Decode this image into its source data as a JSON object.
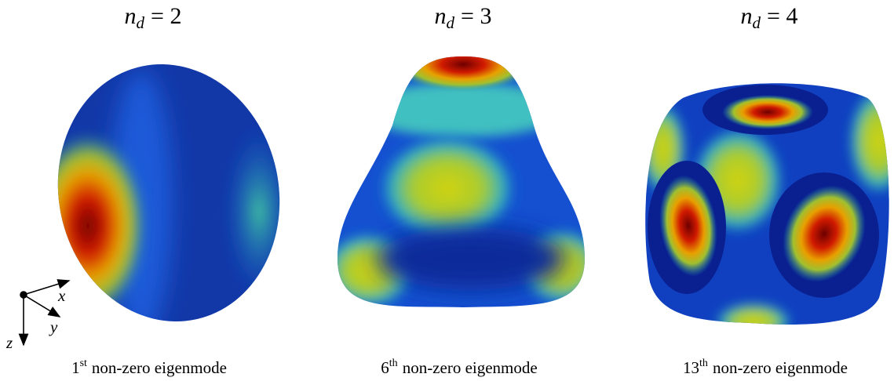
{
  "panels": [
    {
      "title": {
        "var": "n",
        "sub": "d",
        "eq": "= 2"
      },
      "caption": {
        "ordinal": "1",
        "sup": "st",
        "text": "non-zero eigenmode"
      }
    },
    {
      "title": {
        "var": "n",
        "sub": "d",
        "eq": "= 3"
      },
      "caption": {
        "ordinal": "6",
        "sup": "th",
        "text": "non-zero eigenmode"
      }
    },
    {
      "title": {
        "var": "n",
        "sub": "d",
        "eq": "= 4"
      },
      "caption": {
        "ordinal": "13",
        "sup": "th",
        "text": "non-zero eigenmode"
      }
    }
  ],
  "axes": {
    "x": "x",
    "y": "y",
    "z": "z"
  }
}
